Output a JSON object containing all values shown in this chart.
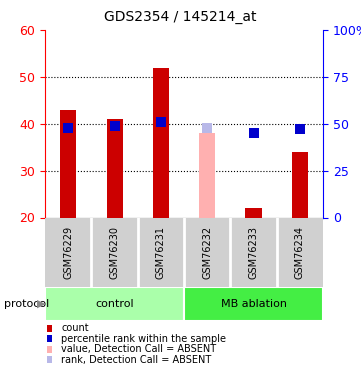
{
  "title": "GDS2354 / 145214_at",
  "samples": [
    "GSM76229",
    "GSM76230",
    "GSM76231",
    "GSM76232",
    "GSM76233",
    "GSM76234"
  ],
  "bar_values": [
    43,
    41,
    52,
    38,
    22,
    34
  ],
  "bar_colors": [
    "#cc0000",
    "#cc0000",
    "#cc0000",
    "#ffb0b0",
    "#cc0000",
    "#cc0000"
  ],
  "rank_values": [
    48,
    49,
    51,
    48,
    45,
    47
  ],
  "rank_colors": [
    "#0000cc",
    "#0000cc",
    "#0000cc",
    "#b8b8e8",
    "#0000cc",
    "#0000cc"
  ],
  "bar_bottom": 20,
  "ylim_left": [
    20,
    60
  ],
  "ylim_right": [
    0,
    100
  ],
  "yticks_left": [
    20,
    30,
    40,
    50,
    60
  ],
  "yticks_right": [
    0,
    25,
    50,
    75,
    100
  ],
  "ytick_labels_right": [
    "0",
    "25",
    "50",
    "75",
    "100%"
  ],
  "grid_dotted_at": [
    30,
    40,
    50
  ],
  "groups": [
    {
      "label": "control",
      "start": 0,
      "end": 3,
      "color": "#aaffaa"
    },
    {
      "label": "MB ablation",
      "start": 3,
      "end": 6,
      "color": "#44ee44"
    }
  ],
  "protocol_label": "protocol",
  "legend_items": [
    {
      "label": "count",
      "color": "#cc0000"
    },
    {
      "label": "percentile rank within the sample",
      "color": "#0000cc"
    },
    {
      "label": "value, Detection Call = ABSENT",
      "color": "#ffb0b0"
    },
    {
      "label": "rank, Detection Call = ABSENT",
      "color": "#b8b8e8"
    }
  ],
  "bg_color": "#ffffff",
  "bar_width": 0.35,
  "rank_marker_size": 7,
  "strip_bg": "#d0d0d0",
  "strip_divider_color": "#ffffff"
}
